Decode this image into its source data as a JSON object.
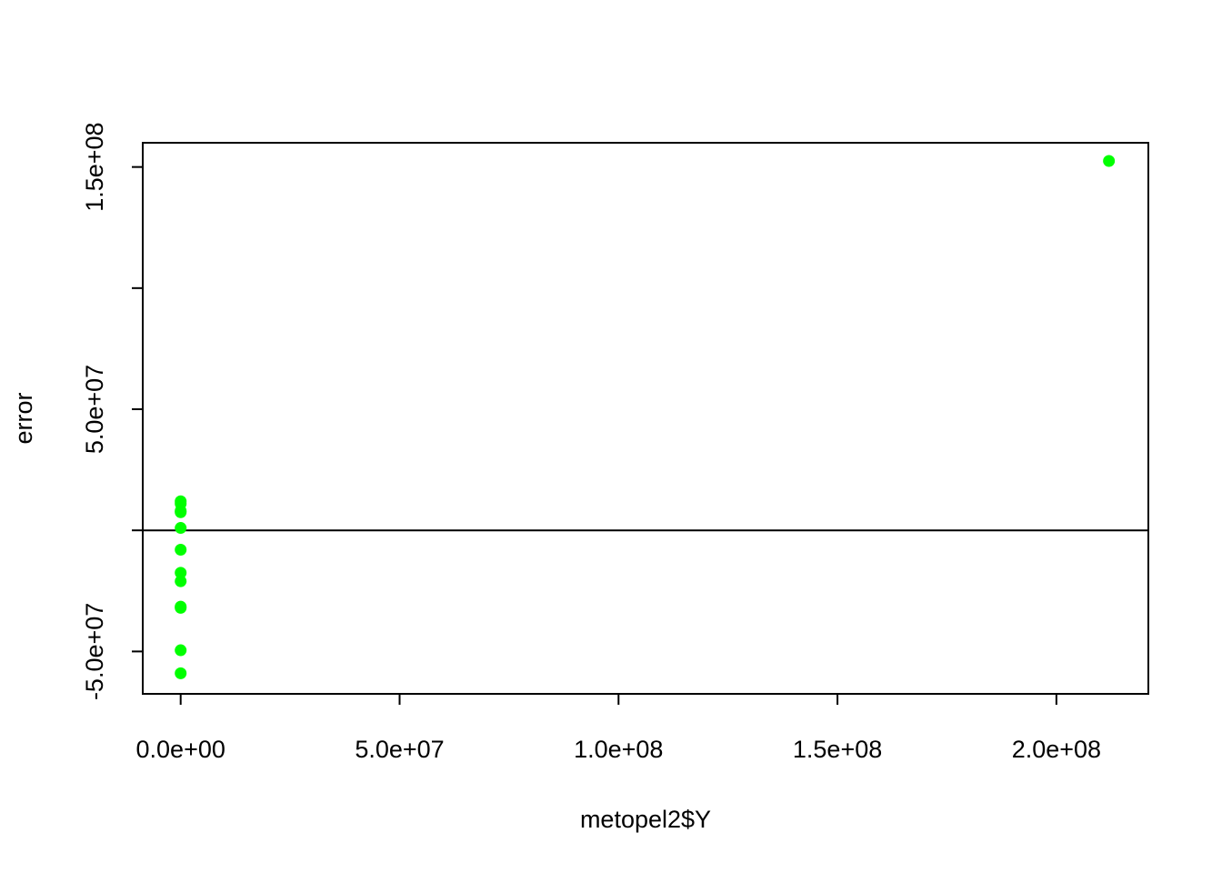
{
  "chart_data": {
    "type": "scatter",
    "title": "",
    "xlabel": "metopel2$Y",
    "ylabel": "error",
    "xlim": [
      -8660000,
      221000000
    ],
    "ylim": [
      -67500000,
      160000000
    ],
    "x_ticks": [
      {
        "value": 0,
        "label": "0.0e+00"
      },
      {
        "value": 50000000,
        "label": "5.0e+07"
      },
      {
        "value": 100000000,
        "label": "1.0e+08"
      },
      {
        "value": 150000000,
        "label": "1.5e+08"
      },
      {
        "value": 200000000,
        "label": "2.0e+08"
      }
    ],
    "y_ticks": [
      {
        "value": -50000000,
        "label": "-5.0e+07"
      },
      {
        "value": 0,
        "label": ""
      },
      {
        "value": 50000000,
        "label": "5.0e+07"
      },
      {
        "value": 100000000,
        "label": ""
      },
      {
        "value": 150000000,
        "label": "1.5e+08"
      }
    ],
    "hline": 0,
    "grid": false,
    "point_color": "#00FF00",
    "points": [
      {
        "x": 0,
        "y": 12000000
      },
      {
        "x": 0,
        "y": 11000000
      },
      {
        "x": 0,
        "y": 8000000
      },
      {
        "x": 0,
        "y": 7500000
      },
      {
        "x": 0,
        "y": 1000000
      },
      {
        "x": 0,
        "y": -8000000
      },
      {
        "x": 0,
        "y": -17500000
      },
      {
        "x": 0,
        "y": -21000000
      },
      {
        "x": 0,
        "y": -31500000
      },
      {
        "x": 0,
        "y": -32000000
      },
      {
        "x": 0,
        "y": -49500000
      },
      {
        "x": 0,
        "y": -59000000
      },
      {
        "x": 212000000,
        "y": 152500000
      }
    ]
  }
}
